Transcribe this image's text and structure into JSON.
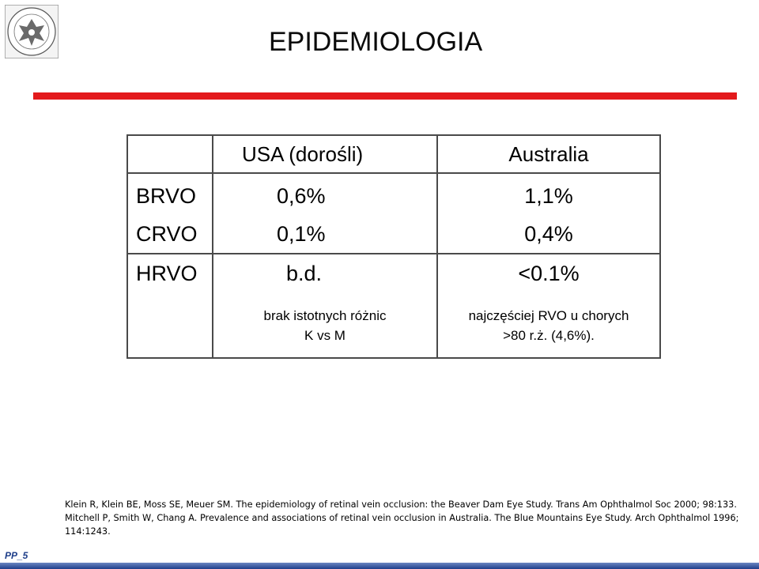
{
  "slide": {
    "title": "EPIDEMIOLOGIA",
    "logo_text": "UNIVERSITAS MEDICA VARSOVIENSIS · SALUTI PUBLICAE · 1809",
    "footer_label": "PP_5",
    "accent_color": "#e31a1c",
    "footer_color": "#1f3f8a"
  },
  "table": {
    "headers": [
      "",
      "USA (dorośli)",
      "Australia"
    ],
    "rows": [
      {
        "label": "BRVO",
        "usa": "0,6%",
        "australia": "1,1%"
      },
      {
        "label": "CRVO",
        "usa": "0,1%",
        "australia": "0,4%"
      },
      {
        "label": "HRVO",
        "usa": "b.d.",
        "australia": "<0.1%"
      }
    ],
    "notes": {
      "usa": [
        "brak istotnych różnic",
        "K vs M"
      ],
      "australia": [
        "najczęściej RVO u chorych",
        ">80 r.ż. (4,6%)."
      ]
    }
  },
  "references": [
    "Klein R, Klein BE, Moss SE, Meuer SM. The epidemiology of retinal vein occlusion: the Beaver Dam Eye Study. Trans Am Ophthalmol Soc 2000; 98:133.",
    "Mitchell P, Smith W, Chang A. Prevalence and associations of retinal vein occlusion in Australia. The Blue Mountains Eye Study. Arch Ophthalmol 1996;",
    "114:1243."
  ]
}
